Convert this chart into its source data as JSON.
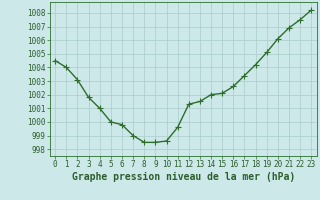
{
  "x": [
    0,
    1,
    2,
    3,
    4,
    5,
    6,
    7,
    8,
    9,
    10,
    11,
    12,
    13,
    14,
    15,
    16,
    17,
    18,
    19,
    20,
    21,
    22,
    23
  ],
  "y": [
    1004.5,
    1004.0,
    1003.1,
    1001.8,
    1001.0,
    1000.0,
    999.8,
    999.0,
    998.5,
    998.5,
    998.6,
    999.6,
    1001.3,
    1001.5,
    1002.0,
    1002.1,
    1002.6,
    1003.4,
    1004.2,
    1005.1,
    1006.1,
    1006.9,
    1007.5,
    1008.2
  ],
  "line_color": "#2d6e2d",
  "marker_color": "#2d6e2d",
  "bg_color": "#cce8e8",
  "grid_color": "#aacccc",
  "xlabel": "Graphe pression niveau de la mer (hPa)",
  "xlim_min": -0.5,
  "xlim_max": 23.5,
  "ylim_min": 997.5,
  "ylim_max": 1008.8,
  "yticks": [
    998,
    999,
    1000,
    1001,
    1002,
    1003,
    1004,
    1005,
    1006,
    1007,
    1008
  ],
  "xticks": [
    0,
    1,
    2,
    3,
    4,
    5,
    6,
    7,
    8,
    9,
    10,
    11,
    12,
    13,
    14,
    15,
    16,
    17,
    18,
    19,
    20,
    21,
    22,
    23
  ],
  "tick_label_color": "#2d5e2d",
  "xlabel_color": "#2d5e2d",
  "font_size_ticks": 5.5,
  "font_size_xlabel": 7.0,
  "line_width": 1.0,
  "marker_size": 4,
  "marker_ew": 0.8
}
